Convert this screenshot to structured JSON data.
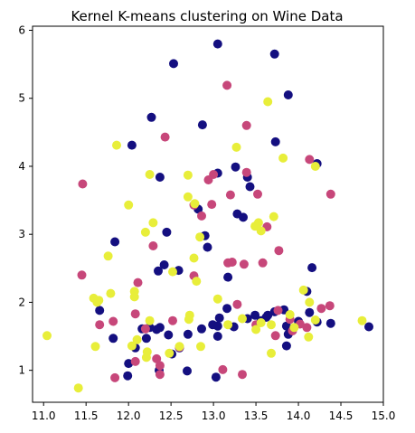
{
  "chart_data": {
    "type": "scatter",
    "title": "Kernel K-means clustering on Wine Data",
    "xlabel": "",
    "ylabel": "",
    "xlim": [
      10.87,
      15.0
    ],
    "ylim": [
      0.53,
      6.06
    ],
    "xticks": [
      "11.0",
      "11.5",
      "12.0",
      "12.5",
      "13.0",
      "13.5",
      "14.0",
      "14.5",
      "15.0"
    ],
    "yticks": [
      "1",
      "2",
      "3",
      "4",
      "5",
      "6"
    ],
    "grid": false,
    "legend": "none",
    "series": [
      {
        "color": "#140f80",
        "points": [
          [
            13.05,
            5.8
          ],
          [
            12.53,
            5.51
          ],
          [
            13.72,
            5.65
          ],
          [
            13.88,
            5.05
          ],
          [
            12.27,
            4.72
          ],
          [
            12.04,
            4.31
          ],
          [
            13.73,
            4.36
          ],
          [
            14.22,
            4.04
          ],
          [
            12.37,
            3.84
          ],
          [
            13.05,
            3.9
          ],
          [
            13.26,
            3.99
          ],
          [
            13.4,
            3.84
          ],
          [
            13.43,
            3.7
          ],
          [
            12.87,
            4.61
          ],
          [
            12.82,
            3.37
          ],
          [
            12.9,
            2.98
          ],
          [
            12.93,
            2.81
          ],
          [
            13.28,
            3.3
          ],
          [
            13.35,
            3.25
          ],
          [
            12.45,
            3.03
          ],
          [
            11.84,
            2.89
          ],
          [
            12.42,
            2.55
          ],
          [
            12.35,
            2.46
          ],
          [
            12.59,
            2.47
          ],
          [
            13.17,
            2.37
          ],
          [
            14.16,
            2.51
          ],
          [
            14.1,
            2.16
          ],
          [
            14.13,
            1.85
          ],
          [
            14.22,
            1.71
          ],
          [
            14.38,
            1.69
          ],
          [
            14.83,
            1.64
          ],
          [
            13.83,
            1.89
          ],
          [
            13.86,
            1.65
          ],
          [
            13.88,
            1.53
          ],
          [
            13.86,
            1.36
          ],
          [
            13.72,
            1.86
          ],
          [
            13.64,
            1.81
          ],
          [
            13.62,
            1.78
          ],
          [
            13.56,
            1.73
          ],
          [
            13.49,
            1.81
          ],
          [
            13.4,
            1.76
          ],
          [
            13.24,
            1.64
          ],
          [
            13.16,
            1.91
          ],
          [
            13.07,
            1.77
          ],
          [
            13.05,
            1.65
          ],
          [
            12.99,
            1.67
          ],
          [
            12.86,
            1.61
          ],
          [
            12.7,
            1.53
          ],
          [
            12.47,
            1.52
          ],
          [
            12.37,
            1.63
          ],
          [
            12.33,
            1.6
          ],
          [
            12.25,
            1.63
          ],
          [
            12.16,
            1.61
          ],
          [
            12.21,
            1.47
          ],
          [
            12.08,
            1.33
          ],
          [
            11.82,
            1.47
          ],
          [
            11.66,
            1.88
          ],
          [
            12.0,
            1.1
          ],
          [
            12.36,
            1.0
          ],
          [
            12.51,
            1.24
          ],
          [
            12.69,
            0.99
          ],
          [
            13.05,
            1.5
          ],
          [
            13.03,
            0.9
          ],
          [
            11.99,
            0.92
          ],
          [
            12.6,
            1.33
          ],
          [
            14.0,
            1.72
          ]
        ]
      },
      {
        "color": "#c7477a",
        "points": [
          [
            13.16,
            5.19
          ],
          [
            13.39,
            4.6
          ],
          [
            12.43,
            4.43
          ],
          [
            14.13,
            4.1
          ],
          [
            11.46,
            3.74
          ],
          [
            13.39,
            3.91
          ],
          [
            13.0,
            3.88
          ],
          [
            12.77,
            3.43
          ],
          [
            12.94,
            3.8
          ],
          [
            13.2,
            3.58
          ],
          [
            13.52,
            3.59
          ],
          [
            14.38,
            3.59
          ],
          [
            13.63,
            3.11
          ],
          [
            12.98,
            3.44
          ],
          [
            12.86,
            3.27
          ],
          [
            12.29,
            2.83
          ],
          [
            13.77,
            2.76
          ],
          [
            13.17,
            2.58
          ],
          [
            13.22,
            2.59
          ],
          [
            13.36,
            2.56
          ],
          [
            13.58,
            2.58
          ],
          [
            12.77,
            2.39
          ],
          [
            12.11,
            2.29
          ],
          [
            11.45,
            2.4
          ],
          [
            11.82,
            1.72
          ],
          [
            11.66,
            1.67
          ],
          [
            12.08,
            1.83
          ],
          [
            12.2,
            1.61
          ],
          [
            12.52,
            1.73
          ],
          [
            13.28,
            1.97
          ],
          [
            13.5,
            1.67
          ],
          [
            13.73,
            1.51
          ],
          [
            13.76,
            1.88
          ],
          [
            13.9,
            1.75
          ],
          [
            13.93,
            1.58
          ],
          [
            14.02,
            1.68
          ],
          [
            14.1,
            1.63
          ],
          [
            14.27,
            1.91
          ],
          [
            14.37,
            1.95
          ],
          [
            12.37,
            1.07
          ],
          [
            12.33,
            1.17
          ],
          [
            12.08,
            1.13
          ],
          [
            12.37,
            0.94
          ],
          [
            11.84,
            0.89
          ],
          [
            13.11,
            1.01
          ],
          [
            13.34,
            0.94
          ],
          [
            12.6,
            1.34
          ]
        ]
      },
      {
        "color": "#e8ee3a",
        "points": [
          [
            13.64,
            4.95
          ],
          [
            11.86,
            4.31
          ],
          [
            13.27,
            4.28
          ],
          [
            12.25,
            3.88
          ],
          [
            12.7,
            3.87
          ],
          [
            13.82,
            4.12
          ],
          [
            14.2,
            4.0
          ],
          [
            12.0,
            3.43
          ],
          [
            12.7,
            3.55
          ],
          [
            12.78,
            3.45
          ],
          [
            12.29,
            3.17
          ],
          [
            12.2,
            3.03
          ],
          [
            13.53,
            3.17
          ],
          [
            13.49,
            3.12
          ],
          [
            13.71,
            3.26
          ],
          [
            13.56,
            3.05
          ],
          [
            12.84,
            2.96
          ],
          [
            11.76,
            2.68
          ],
          [
            12.77,
            2.65
          ],
          [
            12.52,
            2.45
          ],
          [
            12.8,
            2.31
          ],
          [
            11.79,
            2.13
          ],
          [
            12.07,
            2.16
          ],
          [
            12.07,
            2.08
          ],
          [
            11.59,
            2.06
          ],
          [
            11.65,
            2.03
          ],
          [
            11.63,
            2.0
          ],
          [
            13.05,
            2.05
          ],
          [
            14.06,
            2.18
          ],
          [
            14.13,
            2.0
          ],
          [
            13.9,
            1.82
          ],
          [
            13.68,
            1.67
          ],
          [
            13.56,
            1.7
          ],
          [
            13.5,
            1.6
          ],
          [
            13.34,
            1.76
          ],
          [
            13.17,
            1.67
          ],
          [
            12.72,
            1.81
          ],
          [
            12.71,
            1.75
          ],
          [
            12.25,
            1.73
          ],
          [
            12.1,
            1.45
          ],
          [
            12.04,
            1.36
          ],
          [
            12.22,
            1.27
          ],
          [
            12.21,
            1.19
          ],
          [
            12.48,
            1.25
          ],
          [
            12.6,
            1.35
          ],
          [
            12.85,
            1.35
          ],
          [
            11.61,
            1.35
          ],
          [
            11.04,
            1.51
          ],
          [
            11.41,
            0.74
          ],
          [
            13.68,
            1.25
          ],
          [
            14.12,
            1.49
          ],
          [
            14.2,
            1.74
          ],
          [
            14.75,
            1.73
          ],
          [
            13.95,
            1.63
          ]
        ]
      }
    ]
  }
}
